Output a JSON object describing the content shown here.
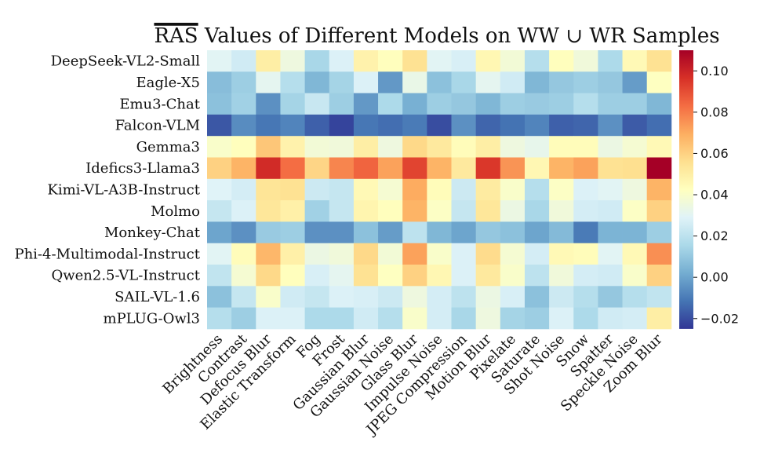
{
  "chart_data": {
    "type": "heatmap",
    "title": "RAS Values of Different Models on WW ∪ WR Samples",
    "title_overlined_part": "RAS",
    "title_rest": " Values of Different Models on WW ∪ WR Samples",
    "rows": [
      "DeepSeek-VL2-Small",
      "Eagle-X5",
      "Emu3-Chat",
      "Falcon-VLM",
      "Gemma3",
      "Idefics3-Llama3",
      "Kimi-VL-A3B-Instruct",
      "Molmo",
      "Monkey-Chat",
      "Phi-4-Multimodal-Instruct",
      "Qwen2.5-VL-Instruct",
      "SAIL-VL-1.6",
      "mPLUG-Owl3"
    ],
    "columns": [
      "Brightness",
      "Contrast",
      "Defocus Blur",
      "Elastic Transform",
      "Fog",
      "Frost",
      "Gaussian Blur",
      "Gaussian Noise",
      "Glass Blur",
      "Impulse Noise",
      "JPEG Compression",
      "Motion Blur",
      "Pixelate",
      "Saturate",
      "Shot Noise",
      "Snow",
      "Spatter",
      "Speckle Noise",
      "Zoom Blur"
    ],
    "values": [
      [
        0.03,
        0.025,
        0.05,
        0.035,
        0.015,
        0.028,
        0.048,
        0.043,
        0.055,
        0.03,
        0.027,
        0.046,
        0.037,
        0.018,
        0.043,
        0.036,
        0.016,
        0.045,
        0.055
      ],
      [
        0.007,
        0.012,
        0.031,
        0.018,
        0.005,
        0.014,
        0.028,
        -0.003,
        0.033,
        0.008,
        0.015,
        0.031,
        0.025,
        0.005,
        0.01,
        0.012,
        0.01,
        -0.002,
        0.042
      ],
      [
        0.008,
        0.013,
        -0.005,
        0.014,
        0.023,
        0.012,
        -0.003,
        0.016,
        0.003,
        0.012,
        0.01,
        0.005,
        0.012,
        0.011,
        0.012,
        0.018,
        0.012,
        0.012,
        0.005
      ],
      [
        -0.018,
        -0.006,
        -0.011,
        -0.008,
        -0.016,
        -0.022,
        -0.011,
        -0.013,
        -0.01,
        -0.02,
        -0.005,
        -0.015,
        -0.012,
        -0.008,
        -0.016,
        -0.015,
        -0.005,
        -0.017,
        -0.013
      ],
      [
        0.04,
        0.043,
        0.063,
        0.048,
        0.037,
        0.036,
        0.05,
        0.035,
        0.058,
        0.052,
        0.044,
        0.05,
        0.035,
        0.032,
        0.044,
        0.044,
        0.034,
        0.038,
        0.045
      ],
      [
        0.06,
        0.068,
        0.098,
        0.083,
        0.059,
        0.078,
        0.085,
        0.072,
        0.092,
        0.068,
        0.052,
        0.095,
        0.075,
        0.046,
        0.068,
        0.072,
        0.055,
        0.056,
        0.11
      ],
      [
        0.029,
        0.026,
        0.054,
        0.055,
        0.024,
        0.022,
        0.045,
        0.038,
        0.07,
        0.044,
        0.024,
        0.051,
        0.04,
        0.018,
        0.041,
        0.028,
        0.03,
        0.035,
        0.068
      ],
      [
        0.022,
        0.028,
        0.053,
        0.049,
        0.013,
        0.022,
        0.047,
        0.043,
        0.068,
        0.041,
        0.022,
        0.053,
        0.034,
        0.015,
        0.036,
        0.026,
        0.025,
        0.041,
        0.06
      ],
      [
        0.0,
        -0.005,
        0.011,
        0.012,
        -0.005,
        -0.005,
        0.008,
        -0.002,
        0.02,
        0.005,
        0.0,
        0.01,
        0.008,
        0.0,
        0.006,
        -0.01,
        0.004,
        0.004,
        0.012
      ],
      [
        0.03,
        0.044,
        0.067,
        0.049,
        0.034,
        0.036,
        0.058,
        0.037,
        0.072,
        0.04,
        0.028,
        0.057,
        0.038,
        0.026,
        0.045,
        0.044,
        0.03,
        0.045,
        0.076
      ],
      [
        0.021,
        0.038,
        0.058,
        0.043,
        0.027,
        0.031,
        0.055,
        0.042,
        0.06,
        0.046,
        0.028,
        0.052,
        0.04,
        0.02,
        0.036,
        0.026,
        0.025,
        0.04,
        0.06
      ],
      [
        0.008,
        0.022,
        0.04,
        0.025,
        0.022,
        0.028,
        0.027,
        0.024,
        0.035,
        0.026,
        0.02,
        0.034,
        0.027,
        0.008,
        0.024,
        0.018,
        0.01,
        0.018,
        0.021
      ],
      [
        0.018,
        0.012,
        0.028,
        0.028,
        0.016,
        0.016,
        0.025,
        0.018,
        0.04,
        0.026,
        0.015,
        0.035,
        0.014,
        0.012,
        0.028,
        0.016,
        0.025,
        0.026,
        0.05
      ]
    ],
    "colorbar": {
      "colormap": "RdYlBu_r",
      "vmin": -0.025,
      "vmax": 0.11,
      "ticks": [
        -0.02,
        0.0,
        0.02,
        0.04,
        0.06,
        0.08,
        0.1
      ],
      "tick_labels": [
        "−0.02",
        "0.00",
        "0.02",
        "0.04",
        "0.06",
        "0.08",
        "0.10"
      ],
      "position": "right"
    },
    "colormap_stops": [
      "#313695",
      "#4575b4",
      "#74add1",
      "#abd9e9",
      "#e0f3f8",
      "#ffffbf",
      "#fee090",
      "#fdae61",
      "#f46d43",
      "#d73027",
      "#a50026"
    ],
    "xlabel": "",
    "ylabel": ""
  }
}
